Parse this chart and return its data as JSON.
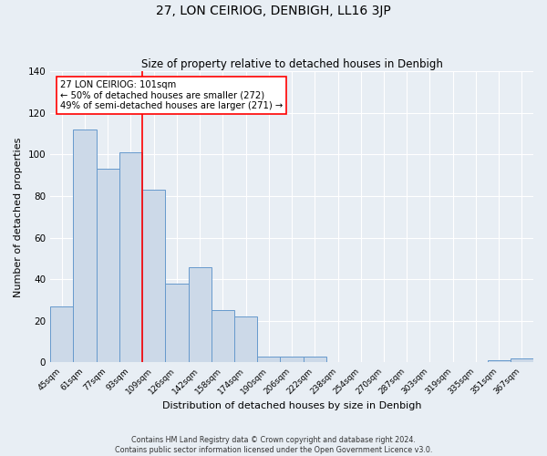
{
  "title": "27, LON CEIRIOG, DENBIGH, LL16 3JP",
  "subtitle": "Size of property relative to detached houses in Denbigh",
  "xlabel": "Distribution of detached houses by size in Denbigh",
  "ylabel": "Number of detached properties",
  "footer_line1": "Contains HM Land Registry data © Crown copyright and database right 2024.",
  "footer_line2": "Contains public sector information licensed under the Open Government Licence v3.0.",
  "bar_labels": [
    "45sqm",
    "61sqm",
    "77sqm",
    "93sqm",
    "109sqm",
    "126sqm",
    "142sqm",
    "158sqm",
    "174sqm",
    "190sqm",
    "206sqm",
    "222sqm",
    "238sqm",
    "254sqm",
    "270sqm",
    "287sqm",
    "303sqm",
    "319sqm",
    "335sqm",
    "351sqm",
    "367sqm"
  ],
  "bar_values": [
    27,
    112,
    93,
    101,
    83,
    38,
    46,
    25,
    22,
    3,
    3,
    3,
    0,
    0,
    0,
    0,
    0,
    0,
    0,
    1,
    2
  ],
  "bar_color": "#ccd9e8",
  "bar_edge_color": "#6699cc",
  "vline_color": "red",
  "annotation_title": "27 LON CEIRIOG: 101sqm",
  "annotation_line1": "← 50% of detached houses are smaller (272)",
  "annotation_line2": "49% of semi-detached houses are larger (271) →",
  "annotation_box_color": "white",
  "annotation_box_edge": "red",
  "ylim": [
    0,
    140
  ],
  "yticks": [
    0,
    20,
    40,
    60,
    80,
    100,
    120,
    140
  ],
  "background_color": "#e8eef4"
}
